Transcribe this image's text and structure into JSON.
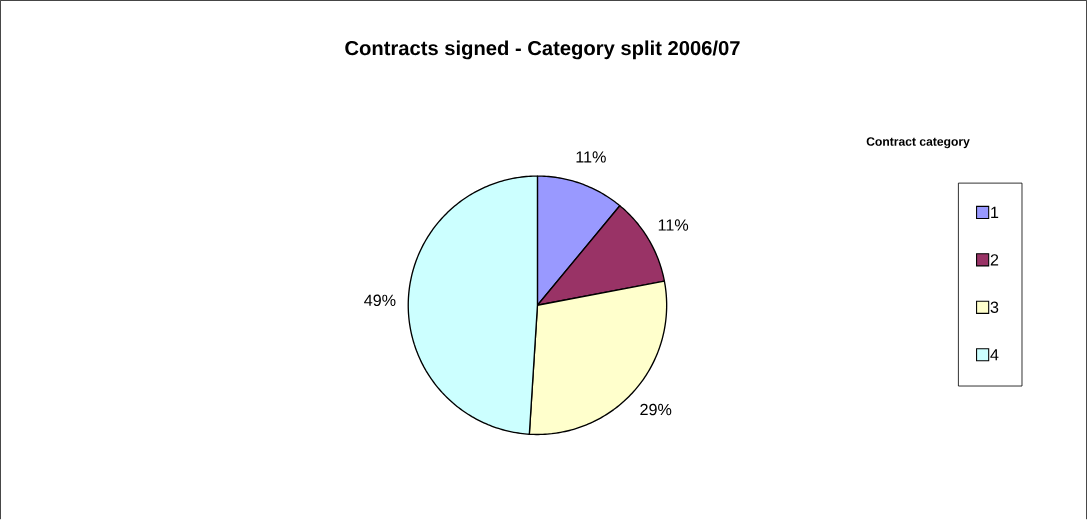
{
  "chart_data": {
    "type": "pie",
    "title": "Contracts signed - Category split 2006/07",
    "legend_title": "Contract category",
    "legend": "right",
    "categories": [
      "1",
      "2",
      "3",
      "4"
    ],
    "values": [
      11,
      11,
      29,
      49
    ],
    "value_labels": [
      "11%",
      "11%",
      "29%",
      "49%"
    ],
    "colors": [
      "#9999ff",
      "#993366",
      "#ffffcc",
      "#ccffff"
    ]
  }
}
